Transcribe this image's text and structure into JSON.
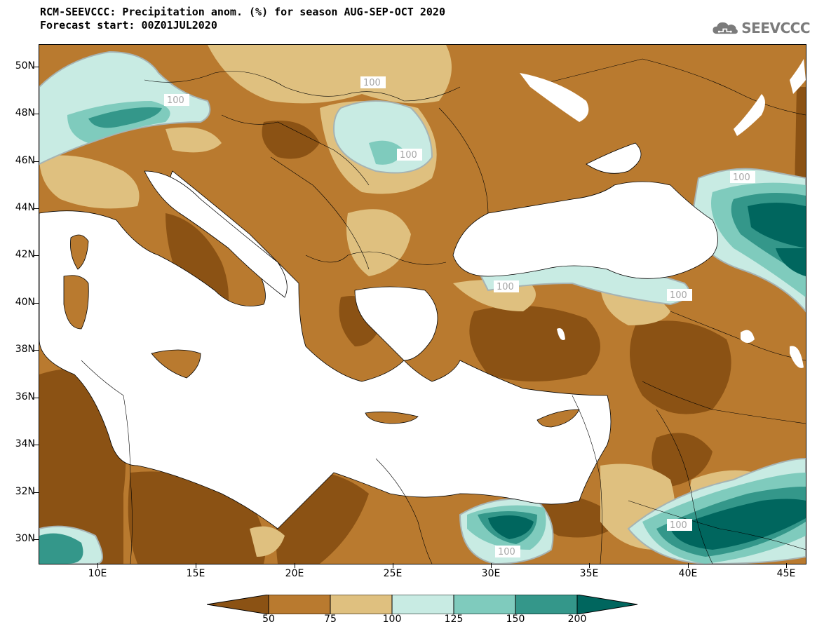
{
  "header": {
    "title": "RCM-SEEVCCC: Precipitation anom. (%) for season AUG-SEP-OCT 2020",
    "subtitle": "Forecast start: 00Z01JUL2020"
  },
  "logo": {
    "icon": "cloud-icon",
    "text": "SEEVCCC"
  },
  "axes": {
    "lat_labels": [
      "50N",
      "48N",
      "46N",
      "44N",
      "42N",
      "40N",
      "38N",
      "36N",
      "34N",
      "32N",
      "30N"
    ],
    "lon_labels": [
      "10E",
      "15E",
      "20E",
      "25E",
      "30E",
      "35E",
      "40E",
      "45E"
    ]
  },
  "contour_labels": [
    "100",
    "100",
    "100",
    "100",
    "100",
    "100",
    "100",
    "100"
  ],
  "colorbar": {
    "levels": [
      "50",
      "75",
      "100",
      "125",
      "150",
      "200"
    ],
    "colors": [
      "#8b5214",
      "#b97a2f",
      "#dfc07f",
      "#c8ebe3",
      "#7fcbbd",
      "#34978a",
      "#00665e"
    ]
  }
}
